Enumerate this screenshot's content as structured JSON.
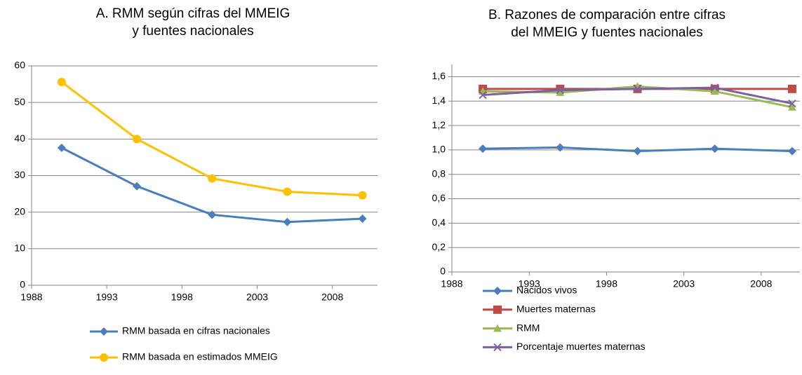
{
  "chart_data": [
    {
      "type": "line",
      "title": [
        "A. RMM según cifras del MMEIG",
        "y fuentes nacionales"
      ],
      "x": [
        1990,
        1995,
        2000,
        2005,
        2010
      ],
      "xlim": [
        1988,
        2011
      ],
      "xticks": [
        1988,
        1993,
        1998,
        2003,
        2008
      ],
      "ylim": [
        0,
        60
      ],
      "yticks": [
        0,
        10,
        20,
        30,
        40,
        50,
        60
      ],
      "grid": true,
      "series": [
        {
          "name": "RMM basada en cifras nacionales",
          "color": "#4a7ebb",
          "marker": "diamond",
          "values": [
            37.6,
            27.1,
            19.3,
            17.3,
            18.2
          ]
        },
        {
          "name": "RMM basada en estimados MMEIG",
          "color": "#ffc000",
          "marker": "circle",
          "values": [
            55.6,
            40.0,
            29.2,
            25.6,
            24.6
          ]
        }
      ]
    },
    {
      "type": "line",
      "title": [
        "B. Razones de comparación entre cifras",
        "del MMEIG y fuentes nacionales"
      ],
      "x": [
        1990,
        1995,
        2000,
        2005,
        2010
      ],
      "xlim": [
        1988,
        2010.5
      ],
      "xticks": [
        1988,
        1993,
        1998,
        2003,
        2008
      ],
      "ylim": [
        0,
        1.7
      ],
      "yticks": [
        0,
        {
          "value": 0.2,
          "label": "0,2"
        },
        {
          "value": 0.4,
          "label": "0,4"
        },
        {
          "value": 0.6,
          "label": "0,6"
        },
        {
          "value": 0.8,
          "label": "0,8"
        },
        {
          "value": 1.0,
          "label": "1,0"
        },
        {
          "value": 1.2,
          "label": "1,2"
        },
        {
          "value": 1.4,
          "label": "1,4"
        },
        {
          "value": 1.6,
          "label": "1,6"
        }
      ],
      "grid": true,
      "series": [
        {
          "name": "Nacidos vivos",
          "color": "#4a7ebb",
          "marker": "diamond",
          "values": [
            1.01,
            1.02,
            0.99,
            1.01,
            0.99
          ]
        },
        {
          "name": "Muertes maternas",
          "color": "#be4b48",
          "marker": "square",
          "values": [
            1.5,
            1.5,
            1.5,
            1.5,
            1.5
          ]
        },
        {
          "name": "RMM",
          "color": "#98b954",
          "marker": "triangle",
          "values": [
            1.48,
            1.47,
            1.52,
            1.48,
            1.35
          ]
        },
        {
          "name": "Porcentaje muertes maternas",
          "color": "#7d60a0",
          "marker": "x",
          "values": [
            1.45,
            1.49,
            1.5,
            1.51,
            1.38
          ]
        }
      ]
    }
  ]
}
